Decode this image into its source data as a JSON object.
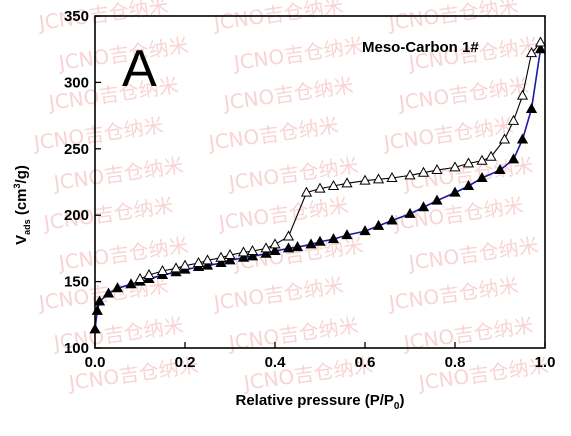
{
  "chart_data": {
    "type": "line",
    "panel_label": "A",
    "legend_text": "Meso-Carbon 1#",
    "xlabel_text": "Relative pressure (P/P",
    "xlabel_sub": "0",
    "xlabel_close": ")",
    "ylabel_text": "V",
    "ylabel_sub": "ads",
    "ylabel_unit": " (cm",
    "ylabel_sup": "3",
    "ylabel_unit_close": "/g)",
    "xlim": [
      0.0,
      1.0
    ],
    "ylim": [
      100,
      350
    ],
    "xticks": [
      "0.0",
      "0.2",
      "0.4",
      "0.6",
      "0.8",
      "1.0"
    ],
    "yticks": [
      "100",
      "150",
      "200",
      "250",
      "300",
      "350"
    ],
    "grid": false,
    "watermark": "JCNO吉仓纳米",
    "series": [
      {
        "marker": "filled-triangle",
        "color": "#1a1aa8",
        "x": [
          0.0,
          0.005,
          0.01,
          0.03,
          0.05,
          0.08,
          0.1,
          0.12,
          0.15,
          0.18,
          0.2,
          0.23,
          0.25,
          0.28,
          0.3,
          0.33,
          0.35,
          0.38,
          0.4,
          0.43,
          0.45,
          0.48,
          0.5,
          0.53,
          0.56,
          0.6,
          0.63,
          0.66,
          0.7,
          0.73,
          0.76,
          0.8,
          0.83,
          0.86,
          0.9,
          0.93,
          0.95,
          0.97,
          0.99
        ],
        "y": [
          114,
          128,
          135,
          141,
          145,
          148,
          150,
          152,
          155,
          157,
          159,
          161,
          162,
          164,
          166,
          168,
          169,
          171,
          173,
          175,
          176,
          178,
          180,
          182,
          185,
          188,
          192,
          196,
          201,
          206,
          211,
          217,
          222,
          228,
          234,
          242,
          257,
          280,
          325
        ]
      },
      {
        "marker": "open-triangle",
        "color": "#000000",
        "x": [
          0.1,
          0.12,
          0.15,
          0.18,
          0.2,
          0.23,
          0.25,
          0.28,
          0.3,
          0.33,
          0.35,
          0.38,
          0.4,
          0.43,
          0.47,
          0.5,
          0.53,
          0.56,
          0.6,
          0.63,
          0.66,
          0.7,
          0.73,
          0.76,
          0.8,
          0.83,
          0.86,
          0.88,
          0.91,
          0.93,
          0.95,
          0.97,
          0.99
        ],
        "y": [
          152,
          155,
          158,
          160,
          162,
          164,
          166,
          168,
          170,
          172,
          173,
          175,
          178,
          184,
          217,
          220,
          222,
          224,
          226,
          227,
          228,
          230,
          232,
          234,
          236,
          239,
          241,
          244,
          257,
          271,
          290,
          322,
          330
        ]
      }
    ]
  }
}
